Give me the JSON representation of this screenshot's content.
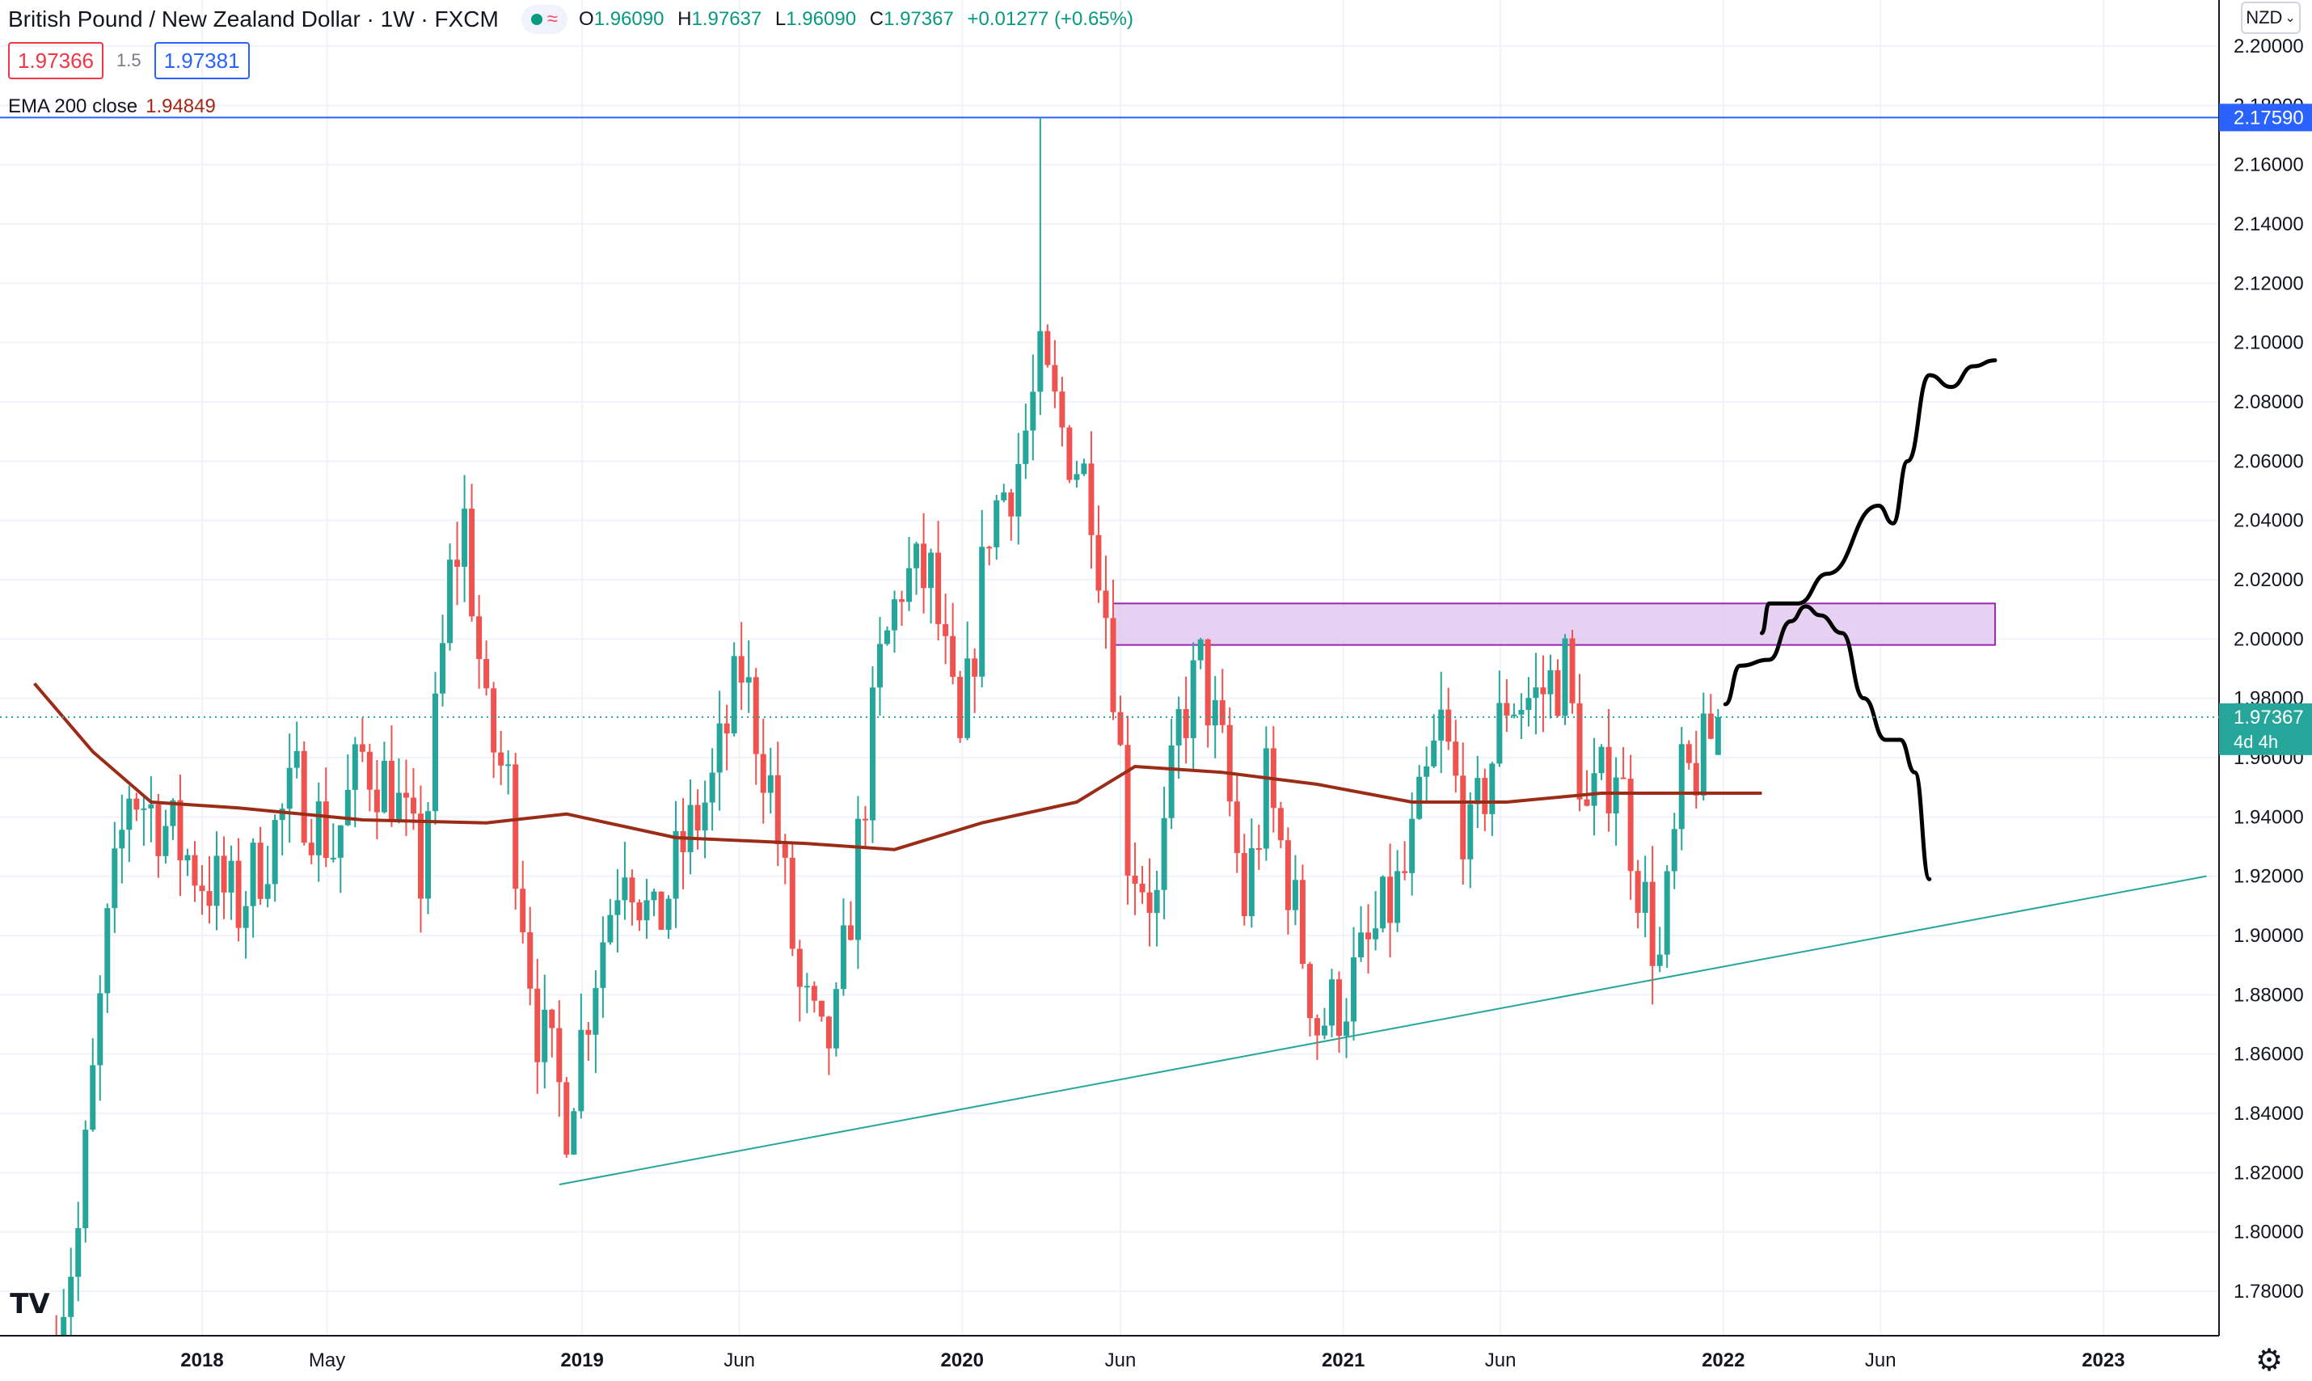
{
  "legend": {
    "title": "British Pound / New Zealand Dollar · 1W · FXCM",
    "open_label": "O",
    "open": "1.96090",
    "high_label": "H",
    "high": "1.97637",
    "low_label": "L",
    "low": "1.96090",
    "close_label": "C",
    "close": "1.97367",
    "change": "+0.01277 (+0.65%)",
    "sell_price": "1.97366",
    "spread": "1.5",
    "buy_price": "1.97381",
    "ema_label": "EMA 200 close",
    "ema_value": "1.94849"
  },
  "currency_button": "NZD",
  "timer": "4d 4h",
  "colors": {
    "up": "#26a69a",
    "down": "#ef5350",
    "ema": "#9b2c17",
    "level": "#2962ff",
    "trend": "#26a69a",
    "zone_fill": "#e1c5f0",
    "zone_border": "#9c27b0",
    "projection": "#000000"
  },
  "icons": {
    "logo": "tradingview-logo-icon",
    "settings": "gear-icon",
    "live": "live-dot-icon",
    "indicator": "wave-icon"
  },
  "chart_data": {
    "type": "candlestick",
    "symbol": "GBPNZD",
    "interval": "1W",
    "ylim": [
      1.765,
      2.215
    ],
    "y_ticks": [
      "2.20000",
      "2.18000",
      "2.16000",
      "2.14000",
      "2.12000",
      "2.10000",
      "2.08000",
      "2.06000",
      "2.04000",
      "2.02000",
      "2.00000",
      "1.98000",
      "1.96000",
      "1.94000",
      "1.92000",
      "1.90000",
      "1.88000",
      "1.86000",
      "1.84000",
      "1.82000",
      "1.80000",
      "1.78000"
    ],
    "x_ticks": [
      {
        "label": "2018",
        "date": "2018-01-01",
        "bold": true
      },
      {
        "label": "May",
        "date": "2018-05-01",
        "bold": false
      },
      {
        "label": "2019",
        "date": "2019-01-01",
        "bold": true
      },
      {
        "label": "Jun",
        "date": "2019-06-01",
        "bold": false
      },
      {
        "label": "2020",
        "date": "2020-01-01",
        "bold": true
      },
      {
        "label": "Jun",
        "date": "2020-06-01",
        "bold": false
      },
      {
        "label": "2021",
        "date": "2021-01-01",
        "bold": true
      },
      {
        "label": "Jun",
        "date": "2021-06-01",
        "bold": false
      },
      {
        "label": "2022",
        "date": "2022-01-01",
        "bold": true
      },
      {
        "label": "Jun",
        "date": "2022-06-01",
        "bold": false
      },
      {
        "label": "2023",
        "date": "2023-01-01",
        "bold": true
      }
    ],
    "last_price": "1.97367",
    "horizontal_level": {
      "price": 2.1759,
      "label": "2.17590"
    },
    "anchors": [
      [
        "2017-08-07",
        1.76
      ],
      [
        "2017-09-04",
        1.8
      ],
      [
        "2017-10-02",
        1.9
      ],
      [
        "2017-10-23",
        1.95
      ],
      [
        "2017-11-20",
        1.94
      ],
      [
        "2018-01-01",
        1.92
      ],
      [
        "2018-02-05",
        1.91
      ],
      [
        "2018-03-05",
        1.93
      ],
      [
        "2018-04-02",
        1.95
      ],
      [
        "2018-05-07",
        1.93
      ],
      [
        "2018-06-04",
        1.96
      ],
      [
        "2018-07-02",
        1.95
      ],
      [
        "2018-07-30",
        1.92
      ],
      [
        "2018-08-27",
        2.02
      ],
      [
        "2018-09-10",
        2.04
      ],
      [
        "2018-10-01",
        1.97
      ],
      [
        "2018-10-22",
        1.95
      ],
      [
        "2018-11-19",
        1.87
      ],
      [
        "2018-12-17",
        1.84
      ],
      [
        "2019-01-14",
        1.89
      ],
      [
        "2019-02-11",
        1.93
      ],
      [
        "2019-03-11",
        1.9
      ],
      [
        "2019-04-08",
        1.93
      ],
      [
        "2019-05-06",
        1.95
      ],
      [
        "2019-06-03",
        1.99
      ],
      [
        "2019-07-01",
        1.95
      ],
      [
        "2019-07-29",
        1.88
      ],
      [
        "2019-08-19",
        1.86
      ],
      [
        "2019-09-02",
        1.87
      ],
      [
        "2019-09-23",
        1.93
      ],
      [
        "2019-10-14",
        1.99
      ],
      [
        "2019-11-04",
        2.02
      ],
      [
        "2019-12-02",
        2.02
      ],
      [
        "2019-12-30",
        1.96
      ],
      [
        "2020-01-27",
        2.04
      ],
      [
        "2020-02-24",
        2.06
      ],
      [
        "2020-03-16",
        2.09
      ],
      [
        "2020-04-06",
        2.07
      ],
      [
        "2020-05-04",
        2.05
      ],
      [
        "2020-05-25",
        1.99
      ],
      [
        "2020-06-08",
        1.93
      ],
      [
        "2020-07-06",
        1.91
      ],
      [
        "2020-07-27",
        1.97
      ],
      [
        "2020-08-17",
        1.99
      ],
      [
        "2020-09-07",
        1.96
      ],
      [
        "2020-09-28",
        1.91
      ],
      [
        "2020-10-19",
        1.95
      ],
      [
        "2020-11-09",
        1.92
      ],
      [
        "2020-12-07",
        1.87
      ],
      [
        "2021-01-04",
        1.88
      ],
      [
        "2021-02-01",
        1.9
      ],
      [
        "2021-03-01",
        1.92
      ],
      [
        "2021-04-05",
        1.97
      ],
      [
        "2021-05-03",
        1.93
      ],
      [
        "2021-06-07",
        1.98
      ],
      [
        "2021-07-05",
        1.98
      ],
      [
        "2021-08-02",
        1.99
      ],
      [
        "2021-08-23",
        1.94
      ],
      [
        "2021-09-20",
        1.96
      ],
      [
        "2021-10-11",
        1.92
      ],
      [
        "2021-11-01",
        1.89
      ],
      [
        "2021-11-22",
        1.95
      ],
      [
        "2021-12-13",
        1.96
      ],
      [
        "2021-12-27",
        1.974
      ]
    ],
    "ema200": [
      [
        "2017-07-24",
        1.985
      ],
      [
        "2017-09-18",
        1.962
      ],
      [
        "2017-11-13",
        1.945
      ],
      [
        "2018-02-05",
        1.943
      ],
      [
        "2018-06-04",
        1.939
      ],
      [
        "2018-10-01",
        1.938
      ],
      [
        "2018-12-17",
        1.941
      ],
      [
        "2019-04-01",
        1.933
      ],
      [
        "2019-08-05",
        1.931
      ],
      [
        "2019-10-28",
        1.929
      ],
      [
        "2020-01-20",
        1.938
      ],
      [
        "2020-04-20",
        1.945
      ],
      [
        "2020-06-15",
        1.957
      ],
      [
        "2020-09-07",
        1.955
      ],
      [
        "2020-12-07",
        1.951
      ],
      [
        "2021-03-08",
        1.945
      ],
      [
        "2021-06-07",
        1.945
      ],
      [
        "2021-09-06",
        1.948
      ],
      [
        "2022-02-07",
        1.948
      ]
    ],
    "supply_zone": {
      "from": "2020-05-25",
      "to": "2022-09-19",
      "high": 2.012,
      "low": 1.998
    },
    "trend_line": {
      "from": [
        "2018-12-10",
        1.816
      ],
      "to": [
        "2023-04-10",
        1.92
      ]
    },
    "projection_bullish": [
      [
        "2022-01-03",
        1.978
      ],
      [
        "2022-01-17",
        1.991
      ],
      [
        "2022-02-14",
        1.993
      ],
      [
        "2022-03-07",
        2.006
      ],
      [
        "2022-03-21",
        2.011
      ],
      [
        "2022-04-04",
        2.008
      ],
      [
        "2022-04-25",
        2.002
      ],
      [
        "2022-05-16",
        1.98
      ],
      [
        "2022-06-06",
        1.966
      ],
      [
        "2022-06-20",
        1.966
      ],
      [
        "2022-07-04",
        1.955
      ],
      [
        "2022-07-18",
        1.919
      ]
    ],
    "projection_bearish": [
      [
        "2022-02-07",
        2.002
      ],
      [
        "2022-02-14",
        2.012
      ],
      [
        "2022-03-14",
        2.012
      ],
      [
        "2022-04-11",
        2.022
      ],
      [
        "2022-05-30",
        2.045
      ],
      [
        "2022-06-13",
        2.039
      ],
      [
        "2022-06-27",
        2.06
      ],
      [
        "2022-07-18",
        2.089
      ],
      [
        "2022-08-08",
        2.085
      ],
      [
        "2022-08-29",
        2.092
      ],
      [
        "2022-09-19",
        2.094
      ]
    ]
  }
}
